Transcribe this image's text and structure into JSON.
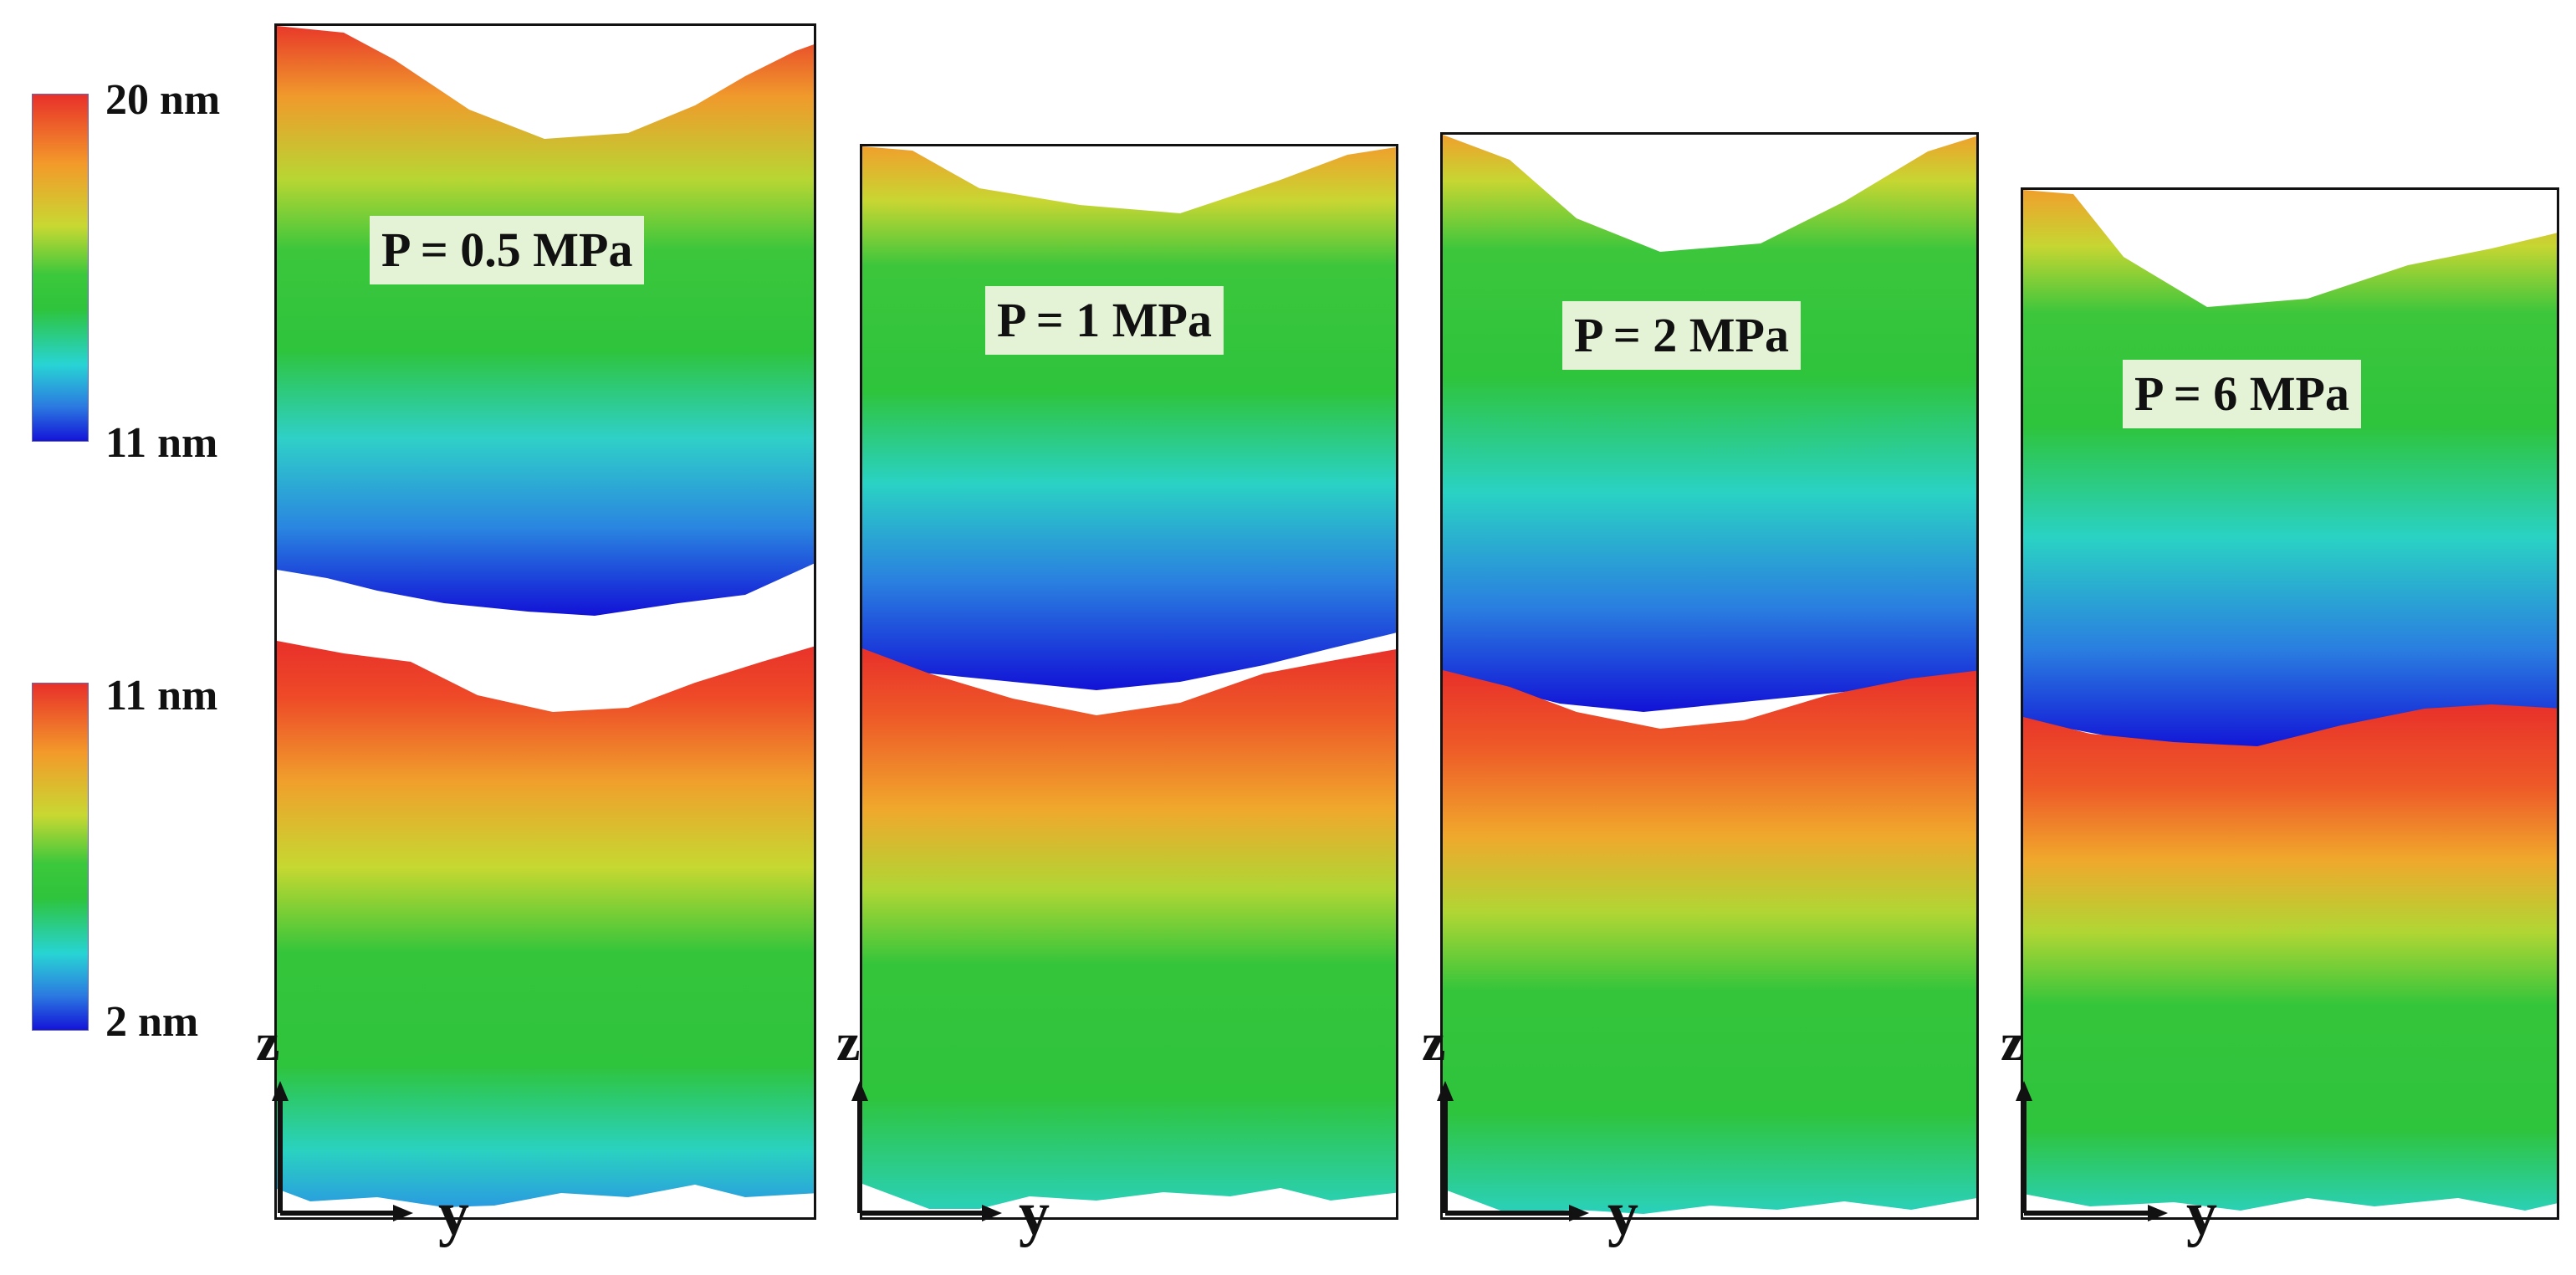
{
  "colorbars": [
    {
      "name": "upper",
      "top_label": "20 nm",
      "bottom_label": "11 nm"
    },
    {
      "name": "lower",
      "top_label": "11 nm",
      "bottom_label": "2 nm"
    }
  ],
  "colors": {
    "gradient": [
      "#e8302a",
      "#f39a2a",
      "#c8d832",
      "#3cc83c",
      "#2ec43c",
      "#28d4d4",
      "#2b7be0",
      "#1414d8"
    ]
  },
  "panels": [
    {
      "label": "P = 0.5 MPa",
      "z_axis": "z",
      "y_axis": "y"
    },
    {
      "label": "P = 1 MPa",
      "z_axis": "z",
      "y_axis": "y"
    },
    {
      "label": "P = 2 MPa",
      "z_axis": "z",
      "y_axis": "y"
    },
    {
      "label": "P = 6 MPa",
      "z_axis": "z",
      "y_axis": "y"
    }
  ]
}
